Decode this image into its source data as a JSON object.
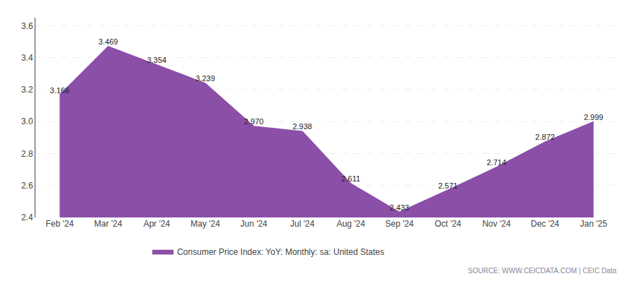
{
  "chart_data": {
    "type": "area",
    "categories": [
      "Feb '24",
      "Mar '24",
      "Apr '24",
      "May '24",
      "Jun '24",
      "Jul '24",
      "Aug '24",
      "Sep '24",
      "Oct '24",
      "Nov '24",
      "Dec '24",
      "Jan '25"
    ],
    "series": [
      {
        "name": "Consumer Price Index: YoY: Monthly: sa: United States",
        "color": "#8B4FA8",
        "values": [
          3.166,
          3.469,
          3.354,
          3.239,
          2.97,
          2.938,
          2.611,
          2.433,
          2.571,
          2.714,
          2.872,
          2.999
        ],
        "value_labels": [
          "3.166",
          "3.469",
          "3.354",
          "3.239",
          "2.970",
          "2.938",
          "2.611",
          "2.433",
          "2.571",
          "2.714",
          "2.872",
          "2.999"
        ]
      }
    ],
    "ylim": [
      2.4,
      3.65
    ],
    "yticks": [
      2.4,
      2.6,
      2.8,
      {
        "value": 3,
        "label": "3.0"
      },
      3.2,
      3.4,
      3.6
    ],
    "grid": true,
    "legend": "bottom",
    "data_labels": true,
    "annotations": [
      "SOURCE: WWW.CEICDATA.COM | CEIC Data"
    ]
  }
}
